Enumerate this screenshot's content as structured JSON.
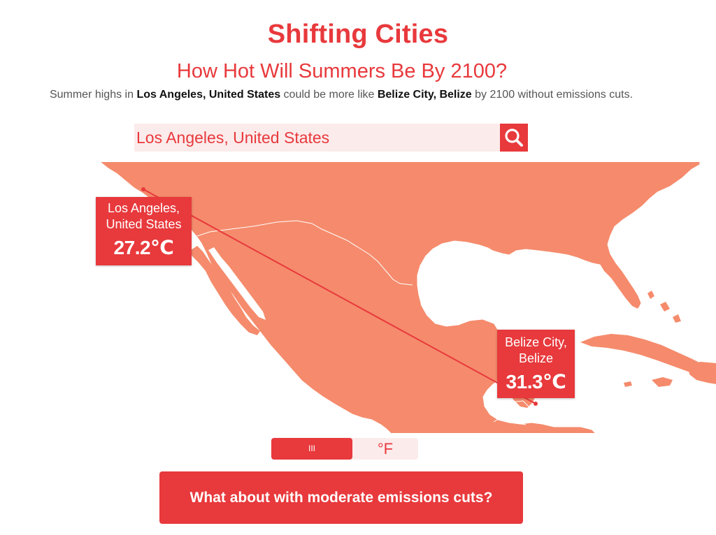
{
  "header": {
    "title": "Shifting Cities",
    "subtitle": "How Hot Will Summers Be By 2100?",
    "summary": {
      "prefix": "Summer highs in ",
      "origin": "Los Angeles, United States",
      "middle": " could be more like ",
      "destination": "Belize City, Belize",
      "suffix": " by 2100 without emissions cuts."
    }
  },
  "search": {
    "value": "Los Angeles, United States",
    "icon": "search-icon"
  },
  "map": {
    "land_color": "#f58b6c",
    "ocean_color": "#ffffff",
    "origin": {
      "name_line1": "Los Angeles,",
      "name_line2": "United States",
      "temp": "27.2℃"
    },
    "destination": {
      "name_line1": "Belize City,",
      "name_line2": "Belize",
      "temp": "31.3℃"
    }
  },
  "unit_toggle": {
    "celsius_label": "III",
    "fahrenheit_label": "°F",
    "selected": "celsius"
  },
  "cta": {
    "label": "What about with moderate emissions cuts?"
  },
  "colors": {
    "accent": "#e8393c",
    "accent_light": "#fcebeb",
    "text_muted": "#555555"
  }
}
